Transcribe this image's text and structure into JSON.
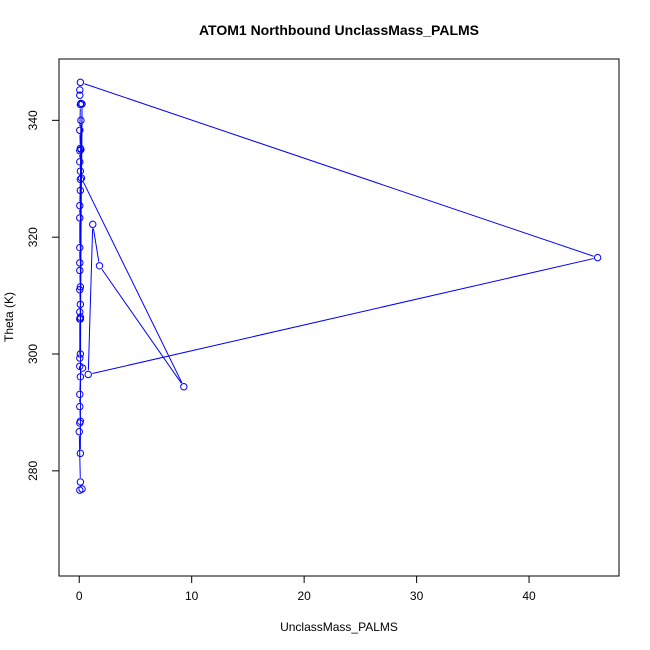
{
  "chart_data": {
    "type": "scatter",
    "title": "ATOM1 Northbound UnclassMass_PALMS",
    "xlabel": "UnclassMass_PALMS",
    "ylabel": "Theta (K)",
    "xlim": [
      -1.8,
      48.0
    ],
    "ylim": [
      262.0,
      350.5
    ],
    "xticks": [
      0,
      10,
      20,
      30,
      40
    ],
    "yticks": [
      280,
      300,
      320,
      340
    ],
    "grid": false,
    "legend": "none",
    "series": [
      {
        "color": "#0000ff",
        "marker": "open-circle",
        "connected": true,
        "points": [
          [
            0.05,
            276.7
          ],
          [
            0.25,
            276.9
          ],
          [
            0.1,
            278.1
          ],
          [
            0.0,
            286.7
          ],
          [
            0.05,
            288.2
          ],
          [
            0.1,
            288.5
          ],
          [
            0.05,
            291.0
          ],
          [
            0.05,
            293.1
          ],
          [
            0.1,
            296.1
          ],
          [
            0.3,
            297.6
          ],
          [
            0.05,
            297.9
          ],
          [
            0.05,
            299.3
          ],
          [
            0.05,
            306.0
          ],
          [
            0.1,
            306.3
          ],
          [
            0.05,
            307.2
          ],
          [
            0.1,
            308.5
          ],
          [
            0.05,
            311.0
          ],
          [
            0.1,
            311.5
          ],
          [
            0.05,
            314.3
          ],
          [
            0.05,
            315.6
          ],
          [
            0.05,
            318.2
          ],
          [
            0.05,
            323.3
          ],
          [
            0.05,
            325.4
          ],
          [
            0.1,
            329.9
          ],
          [
            0.1,
            331.3
          ],
          [
            0.05,
            332.9
          ],
          [
            0.05,
            334.8
          ],
          [
            0.1,
            335.2
          ],
          [
            0.05,
            338.3
          ],
          [
            0.1,
            342.7
          ],
          [
            0.15,
            342.9
          ],
          [
            0.05,
            344.3
          ],
          [
            0.05,
            345.2
          ],
          [
            0.1,
            346.5
          ],
          [
            46.1,
            316.5
          ],
          [
            0.8,
            296.5
          ],
          [
            1.2,
            322.2
          ],
          [
            1.8,
            315.1
          ],
          [
            9.3,
            294.4
          ],
          [
            0.2,
            330.1
          ],
          [
            0.25,
            342.8
          ],
          [
            0.1,
            306.0
          ],
          [
            0.15,
            340.0
          ],
          [
            0.1,
            328.0
          ],
          [
            0.1,
            300.0
          ],
          [
            0.15,
            335.0
          ],
          [
            0.1,
            283.0
          ]
        ]
      }
    ]
  }
}
